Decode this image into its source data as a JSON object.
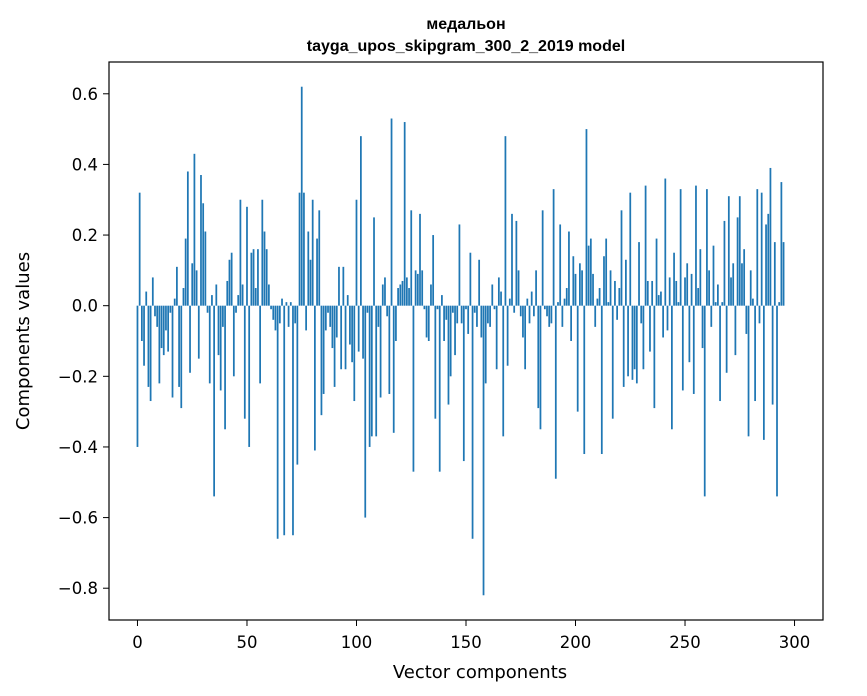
{
  "chart_data": {
    "type": "bar",
    "title": "медальон",
    "subtitle": "tayga_upos_skipgram_300_2_2019 model",
    "xlabel": "Vector components",
    "ylabel": "Components values",
    "xlim": [
      -13,
      313
    ],
    "ylim": [
      -0.89,
      0.69
    ],
    "xticks": [
      0,
      50,
      100,
      150,
      200,
      250,
      300
    ],
    "yticks": [
      -0.8,
      -0.6,
      -0.4,
      -0.2,
      0.0,
      0.2,
      0.4,
      0.6
    ],
    "ytick_labels": [
      "−0.8",
      "−0.6",
      "−0.4",
      "−0.2",
      "0.0",
      "0.2",
      "0.4",
      "0.6"
    ],
    "bar_color": "#1f77b4",
    "series": [
      {
        "name": "components",
        "x_start": 0,
        "values": [
          -0.4,
          0.32,
          -0.1,
          -0.17,
          0.04,
          -0.23,
          -0.27,
          0.08,
          -0.03,
          -0.06,
          -0.22,
          -0.12,
          -0.14,
          -0.07,
          -0.13,
          -0.02,
          -0.26,
          0.02,
          0.11,
          -0.23,
          -0.29,
          0.05,
          0.19,
          0.38,
          -0.19,
          0.12,
          0.43,
          0.1,
          -0.15,
          0.37,
          0.29,
          0.21,
          -0.02,
          -0.22,
          0.03,
          -0.54,
          0.06,
          -0.14,
          -0.24,
          -0.06,
          -0.35,
          0.07,
          0.13,
          0.15,
          -0.2,
          -0.02,
          0.03,
          0.3,
          0.06,
          -0.32,
          0.28,
          -0.4,
          0.15,
          0.16,
          0.05,
          0.16,
          -0.22,
          0.3,
          0.21,
          0.16,
          0.06,
          -0.01,
          -0.04,
          -0.07,
          -0.66,
          -0.05,
          0.02,
          -0.65,
          0.01,
          -0.06,
          0.01,
          -0.65,
          -0.05,
          -0.45,
          0.32,
          0.62,
          0.32,
          -0.07,
          0.21,
          0.13,
          0.3,
          -0.41,
          0.19,
          0.27,
          -0.31,
          -0.25,
          -0.07,
          -0.02,
          -0.06,
          -0.12,
          -0.23,
          -0.09,
          0.11,
          -0.18,
          0.11,
          -0.18,
          0.03,
          -0.11,
          -0.16,
          -0.27,
          0.3,
          -0.13,
          0.48,
          -0.15,
          -0.6,
          -0.02,
          -0.4,
          -0.37,
          0.25,
          -0.37,
          -0.06,
          -0.26,
          0.06,
          0.08,
          -0.03,
          -0.25,
          0.53,
          -0.36,
          -0.1,
          0.05,
          0.06,
          0.07,
          0.52,
          0.08,
          0.05,
          0.27,
          -0.47,
          0.1,
          0.09,
          0.26,
          0.1,
          -0.01,
          -0.09,
          -0.1,
          0.06,
          0.2,
          -0.32,
          -0.01,
          -0.47,
          0.03,
          -0.1,
          -0.04,
          -0.28,
          -0.2,
          -0.02,
          -0.14,
          -0.05,
          0.23,
          -0.05,
          -0.44,
          -0.01,
          -0.08,
          0.15,
          -0.66,
          -0.02,
          -0.06,
          0.13,
          -0.09,
          -0.82,
          -0.22,
          -0.05,
          -0.06,
          0.06,
          -0.01,
          -0.18,
          0.08,
          0.04,
          -0.37,
          0.48,
          -0.17,
          0.02,
          0.26,
          -0.02,
          0.24,
          0.1,
          -0.03,
          -0.09,
          -0.18,
          0.02,
          -0.05,
          0.04,
          -0.03,
          0.1,
          -0.29,
          -0.35,
          0.27,
          -0.01,
          -0.03,
          -0.06,
          -0.05,
          0.33,
          -0.49,
          0.01,
          0.23,
          -0.06,
          0.02,
          0.05,
          0.21,
          -0.1,
          0.14,
          0.09,
          -0.3,
          0.12,
          0.1,
          -0.42,
          0.5,
          0.17,
          0.19,
          0.09,
          -0.06,
          0.02,
          0.05,
          -0.42,
          0.14,
          0.19,
          0.01,
          0.1,
          -0.32,
          0.07,
          -0.04,
          0.05,
          0.27,
          -0.23,
          0.13,
          -0.2,
          0.32,
          -0.21,
          -0.18,
          -0.22,
          0.18,
          -0.05,
          -0.18,
          0.34,
          0.07,
          -0.13,
          0.07,
          -0.29,
          0.19,
          0.03,
          0.04,
          -0.09,
          0.36,
          -0.07,
          0.08,
          -0.35,
          0.15,
          0.07,
          0.01,
          0.33,
          -0.24,
          0.08,
          0.12,
          -0.16,
          0.09,
          -0.25,
          0.34,
          0.05,
          0.16,
          -0.12,
          -0.54,
          0.33,
          0.1,
          -0.06,
          0.17,
          0.01,
          0.06,
          -0.27,
          0.01,
          0.24,
          -0.19,
          0.31,
          0.08,
          0.12,
          -0.14,
          0.25,
          0.31,
          0.12,
          0.16,
          -0.08,
          -0.37,
          0.1,
          0.02,
          -0.27,
          0.33,
          -0.05,
          0.32,
          -0.38,
          0.23,
          0.26,
          0.39,
          -0.28,
          0.18,
          -0.54,
          0.01,
          0.35,
          0.18
        ]
      }
    ]
  }
}
